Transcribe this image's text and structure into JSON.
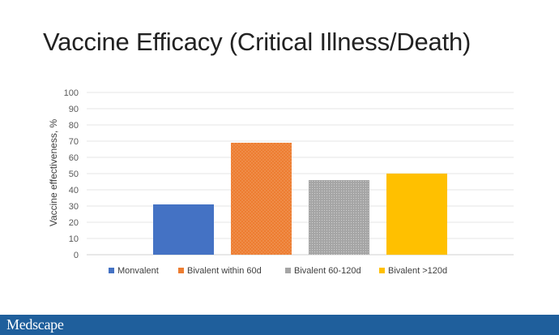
{
  "slide": {
    "title": "Vaccine Efficacy (Critical Illness/Death)"
  },
  "footer": {
    "brand": "Medscape"
  },
  "chart_data": {
    "type": "bar",
    "title": "",
    "xlabel": "",
    "ylabel": "Vaccine effectiveness, %",
    "ylim": [
      0,
      100
    ],
    "yticks": [
      0,
      10,
      20,
      30,
      40,
      50,
      60,
      70,
      80,
      90,
      100
    ],
    "grid": true,
    "legend_position": "bottom",
    "series": [
      {
        "name": "Monvalent",
        "values": [
          31
        ],
        "color": "#4472c4",
        "pattern": "solid"
      },
      {
        "name": "Bivalent within 60d",
        "values": [
          69
        ],
        "color": "#ed7d31",
        "pattern": "dots"
      },
      {
        "name": "Bivalent 60-120d",
        "values": [
          46
        ],
        "color": "#a5a5a5",
        "pattern": "dots"
      },
      {
        "name": "Bivalent >120d",
        "values": [
          50
        ],
        "color": "#ffc000",
        "pattern": "solid"
      }
    ]
  }
}
